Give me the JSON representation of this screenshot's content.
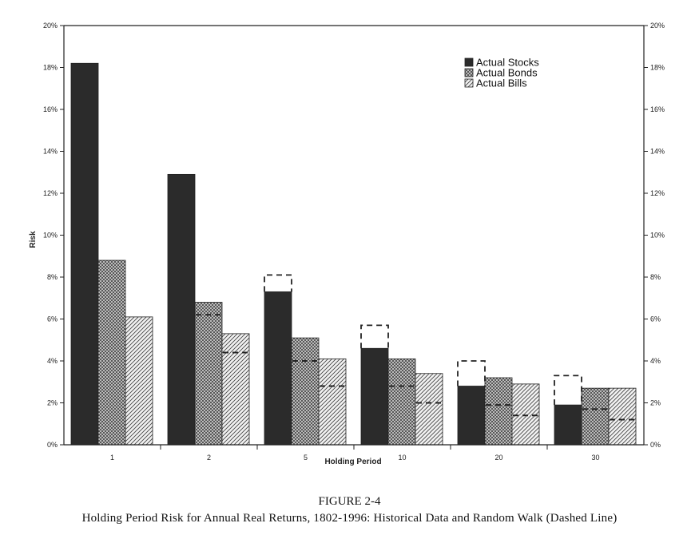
{
  "chart_data": {
    "type": "bar",
    "title": "",
    "xlabel": "Holding Period",
    "ylabel": "Risk",
    "ylim": [
      0,
      20
    ],
    "yticks": [
      0,
      2,
      4,
      6,
      8,
      10,
      12,
      14,
      16,
      18,
      20
    ],
    "ytick_labels": [
      "0%",
      "2%",
      "4%",
      "6%",
      "8%",
      "10%",
      "12%",
      "14%",
      "16%",
      "18%",
      "20%"
    ],
    "right_axis_mirrored": true,
    "grid": false,
    "legend_position": "top-right",
    "categories": [
      "1",
      "2",
      "5",
      "10",
      "20",
      "30"
    ],
    "series": [
      {
        "name": "Actual Stocks",
        "pattern": "solid",
        "values": [
          18.2,
          12.9,
          7.3,
          4.6,
          2.8,
          1.9
        ]
      },
      {
        "name": "Actual Bonds",
        "pattern": "crosshatch",
        "values": [
          8.8,
          6.8,
          5.1,
          4.1,
          3.2,
          2.7
        ]
      },
      {
        "name": "Actual Bills",
        "pattern": "diagonal",
        "values": [
          6.1,
          5.3,
          4.1,
          3.4,
          2.9,
          2.7
        ]
      }
    ],
    "random_walk_dashed": [
      [
        18.2,
        8.8,
        6.1
      ],
      [
        12.9,
        6.2,
        4.4
      ],
      [
        8.1,
        4.0,
        2.8
      ],
      [
        5.7,
        2.8,
        2.0
      ],
      [
        4.0,
        1.9,
        1.4
      ],
      [
        3.3,
        1.7,
        1.2
      ]
    ]
  },
  "caption": {
    "label": "FIGURE 2-4",
    "title": "Holding Period Risk for Annual Real Returns, 1802-1996: Historical Data and Random Walk (Dashed Line)"
  },
  "colors": {
    "stocks": "#2b2b2b",
    "hatch": "#333333",
    "axis": "#222222"
  }
}
